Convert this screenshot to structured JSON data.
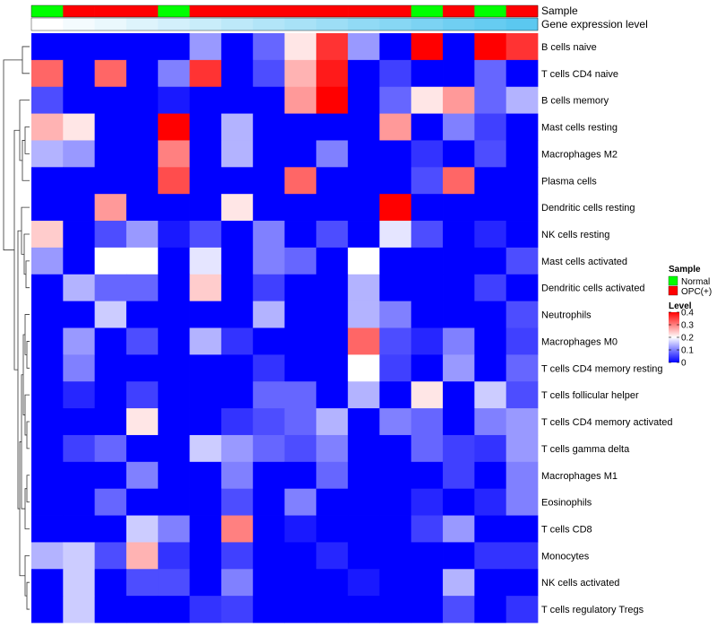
{
  "chart_data": {
    "type": "heatmap",
    "annotation_labels": {
      "sample": "Sample",
      "expression": "Gene expression level"
    },
    "rows": [
      "B cells naive",
      "T cells CD4 naive",
      "B cells memory",
      "Mast cells resting",
      "Macrophages M2",
      "Plasma cells",
      "Dendritic cells resting",
      "NK cells resting",
      "Mast cells activated",
      "Dendritic cells activated",
      "Neutrophils",
      "Macrophages M0",
      "T cells CD4 memory resting",
      "T cells follicular helper",
      "T cells CD4 memory activated",
      "T cells gamma delta",
      "Macrophages M1",
      "Eosinophils",
      "T cells CD8",
      "Monocytes",
      "NK cells activated",
      "T cells regulatory  Tregs"
    ],
    "sample_groups": [
      "Normal",
      "OPC(+)",
      "OPC(+)",
      "OPC(+)",
      "Normal",
      "OPC(+)",
      "OPC(+)",
      "OPC(+)",
      "OPC(+)",
      "OPC(+)",
      "OPC(+)",
      "OPC(+)",
      "Normal",
      "OPC(+)",
      "Normal",
      "OPC(+)"
    ],
    "expression_levels": [
      0.0,
      0.07,
      0.13,
      0.2,
      0.27,
      0.33,
      0.4,
      0.47,
      0.53,
      0.6,
      0.67,
      0.73,
      0.8,
      0.87,
      0.93,
      1.0
    ],
    "values": [
      [
        0,
        0,
        0,
        0,
        0,
        0.12,
        0,
        0.08,
        0.22,
        0.36,
        0.12,
        0,
        0.4,
        0,
        0.4,
        0.36
      ],
      [
        0.32,
        0,
        0.32,
        0,
        0.1,
        0.36,
        0,
        0.06,
        0.26,
        0.38,
        0,
        0.05,
        0,
        0,
        0.08,
        0
      ],
      [
        0.06,
        0,
        0,
        0,
        0.02,
        0,
        0,
        0,
        0.28,
        0.4,
        0,
        0.08,
        0.22,
        0.28,
        0.08,
        0.14
      ],
      [
        0.26,
        0.22,
        0,
        0,
        0.4,
        0,
        0.14,
        0,
        0,
        0,
        0,
        0.28,
        0,
        0.1,
        0.05,
        0
      ],
      [
        0.14,
        0.12,
        0,
        0,
        0.3,
        0,
        0.14,
        0,
        0,
        0.1,
        0,
        0,
        0.04,
        0,
        0.06,
        0
      ],
      [
        0,
        0,
        0,
        0,
        0.34,
        0,
        0,
        0,
        0.32,
        0,
        0,
        0,
        0.06,
        0.32,
        0,
        0
      ],
      [
        0,
        0,
        0.28,
        0,
        0,
        0,
        0.22,
        0,
        0,
        0,
        0,
        0.4,
        0,
        0,
        0,
        0
      ],
      [
        0.24,
        0,
        0.06,
        0.12,
        0.02,
        0.06,
        0,
        0.1,
        0,
        0.06,
        0,
        0.18,
        0.06,
        0,
        0.03,
        0
      ],
      [
        0.12,
        0,
        0.2,
        0.2,
        0,
        0.18,
        0,
        0.1,
        0.08,
        0,
        0.2,
        0,
        0,
        0,
        0,
        0.06
      ],
      [
        0,
        0.14,
        0.08,
        0.08,
        0,
        0.24,
        0,
        0.05,
        0,
        0,
        0.14,
        0,
        0,
        0,
        0.05,
        0
      ],
      [
        0,
        0,
        0.16,
        0,
        0,
        0,
        0,
        0.14,
        0,
        0,
        0.14,
        0.1,
        0,
        0,
        0,
        0.06
      ],
      [
        0,
        0.12,
        0,
        0.06,
        0,
        0.14,
        0.04,
        0,
        0,
        0,
        0.32,
        0.06,
        0.03,
        0.1,
        0,
        0.05
      ],
      [
        0,
        0.1,
        0,
        0,
        0,
        0,
        0,
        0.04,
        0,
        0,
        0.2,
        0.05,
        0,
        0.12,
        0,
        0.08
      ],
      [
        0,
        0.03,
        0,
        0.05,
        0,
        0,
        0,
        0.08,
        0.08,
        0,
        0.14,
        0,
        0.22,
        0,
        0.16,
        0.06
      ],
      [
        0,
        0,
        0,
        0.22,
        0,
        0,
        0.04,
        0.06,
        0.08,
        0.14,
        0,
        0.1,
        0.08,
        0,
        0.1,
        0.12
      ],
      [
        0,
        0.05,
        0.08,
        0,
        0,
        0.16,
        0.12,
        0.08,
        0.06,
        0.1,
        0,
        0,
        0.08,
        0.05,
        0.04,
        0.12
      ],
      [
        0,
        0,
        0,
        0.1,
        0,
        0,
        0.1,
        0,
        0,
        0.08,
        0,
        0,
        0,
        0.05,
        0,
        0.1
      ],
      [
        0,
        0,
        0.08,
        0,
        0,
        0,
        0.06,
        0,
        0.1,
        0,
        0,
        0,
        0.03,
        0,
        0.03,
        0.1
      ],
      [
        0,
        0,
        0,
        0.16,
        0.1,
        0,
        0.3,
        0,
        0.02,
        0,
        0,
        0,
        0.05,
        0.12,
        0,
        0
      ],
      [
        0.14,
        0.16,
        0.06,
        0.26,
        0.04,
        0,
        0.05,
        0,
        0,
        0.03,
        0,
        0,
        0,
        0,
        0.04,
        0.04
      ],
      [
        0,
        0.16,
        0,
        0.06,
        0.06,
        0,
        0.1,
        0,
        0,
        0,
        0.02,
        0,
        0,
        0.14,
        0,
        0
      ],
      [
        0,
        0.16,
        0,
        0,
        0,
        0.04,
        0.05,
        0,
        0,
        0,
        0,
        0,
        0,
        0.06,
        0,
        0.04
      ]
    ],
    "legend_sample": {
      "title": "Sample",
      "items": [
        {
          "label": "Normal",
          "color": "#00ff00"
        },
        {
          "label": "OPC(+)",
          "color": "#ff0000"
        }
      ]
    },
    "legend_level": {
      "title": "Level",
      "ticks": [
        {
          "label": "0.4",
          "value": 0.4
        },
        {
          "label": "0.3",
          "value": 0.3
        },
        {
          "label": "0.2",
          "value": 0.2
        },
        {
          "label": "0.1",
          "value": 0.1
        },
        {
          "label": "0",
          "value": 0
        }
      ],
      "range": [
        0,
        0.4
      ]
    },
    "colors": {
      "low": "#0000ff",
      "mid": "#ffffff",
      "high": "#ff0000",
      "normal": "#00ff00",
      "opc": "#ff0000",
      "expr_low": "#ffffff",
      "expr_high": "#5bc8f0"
    }
  }
}
